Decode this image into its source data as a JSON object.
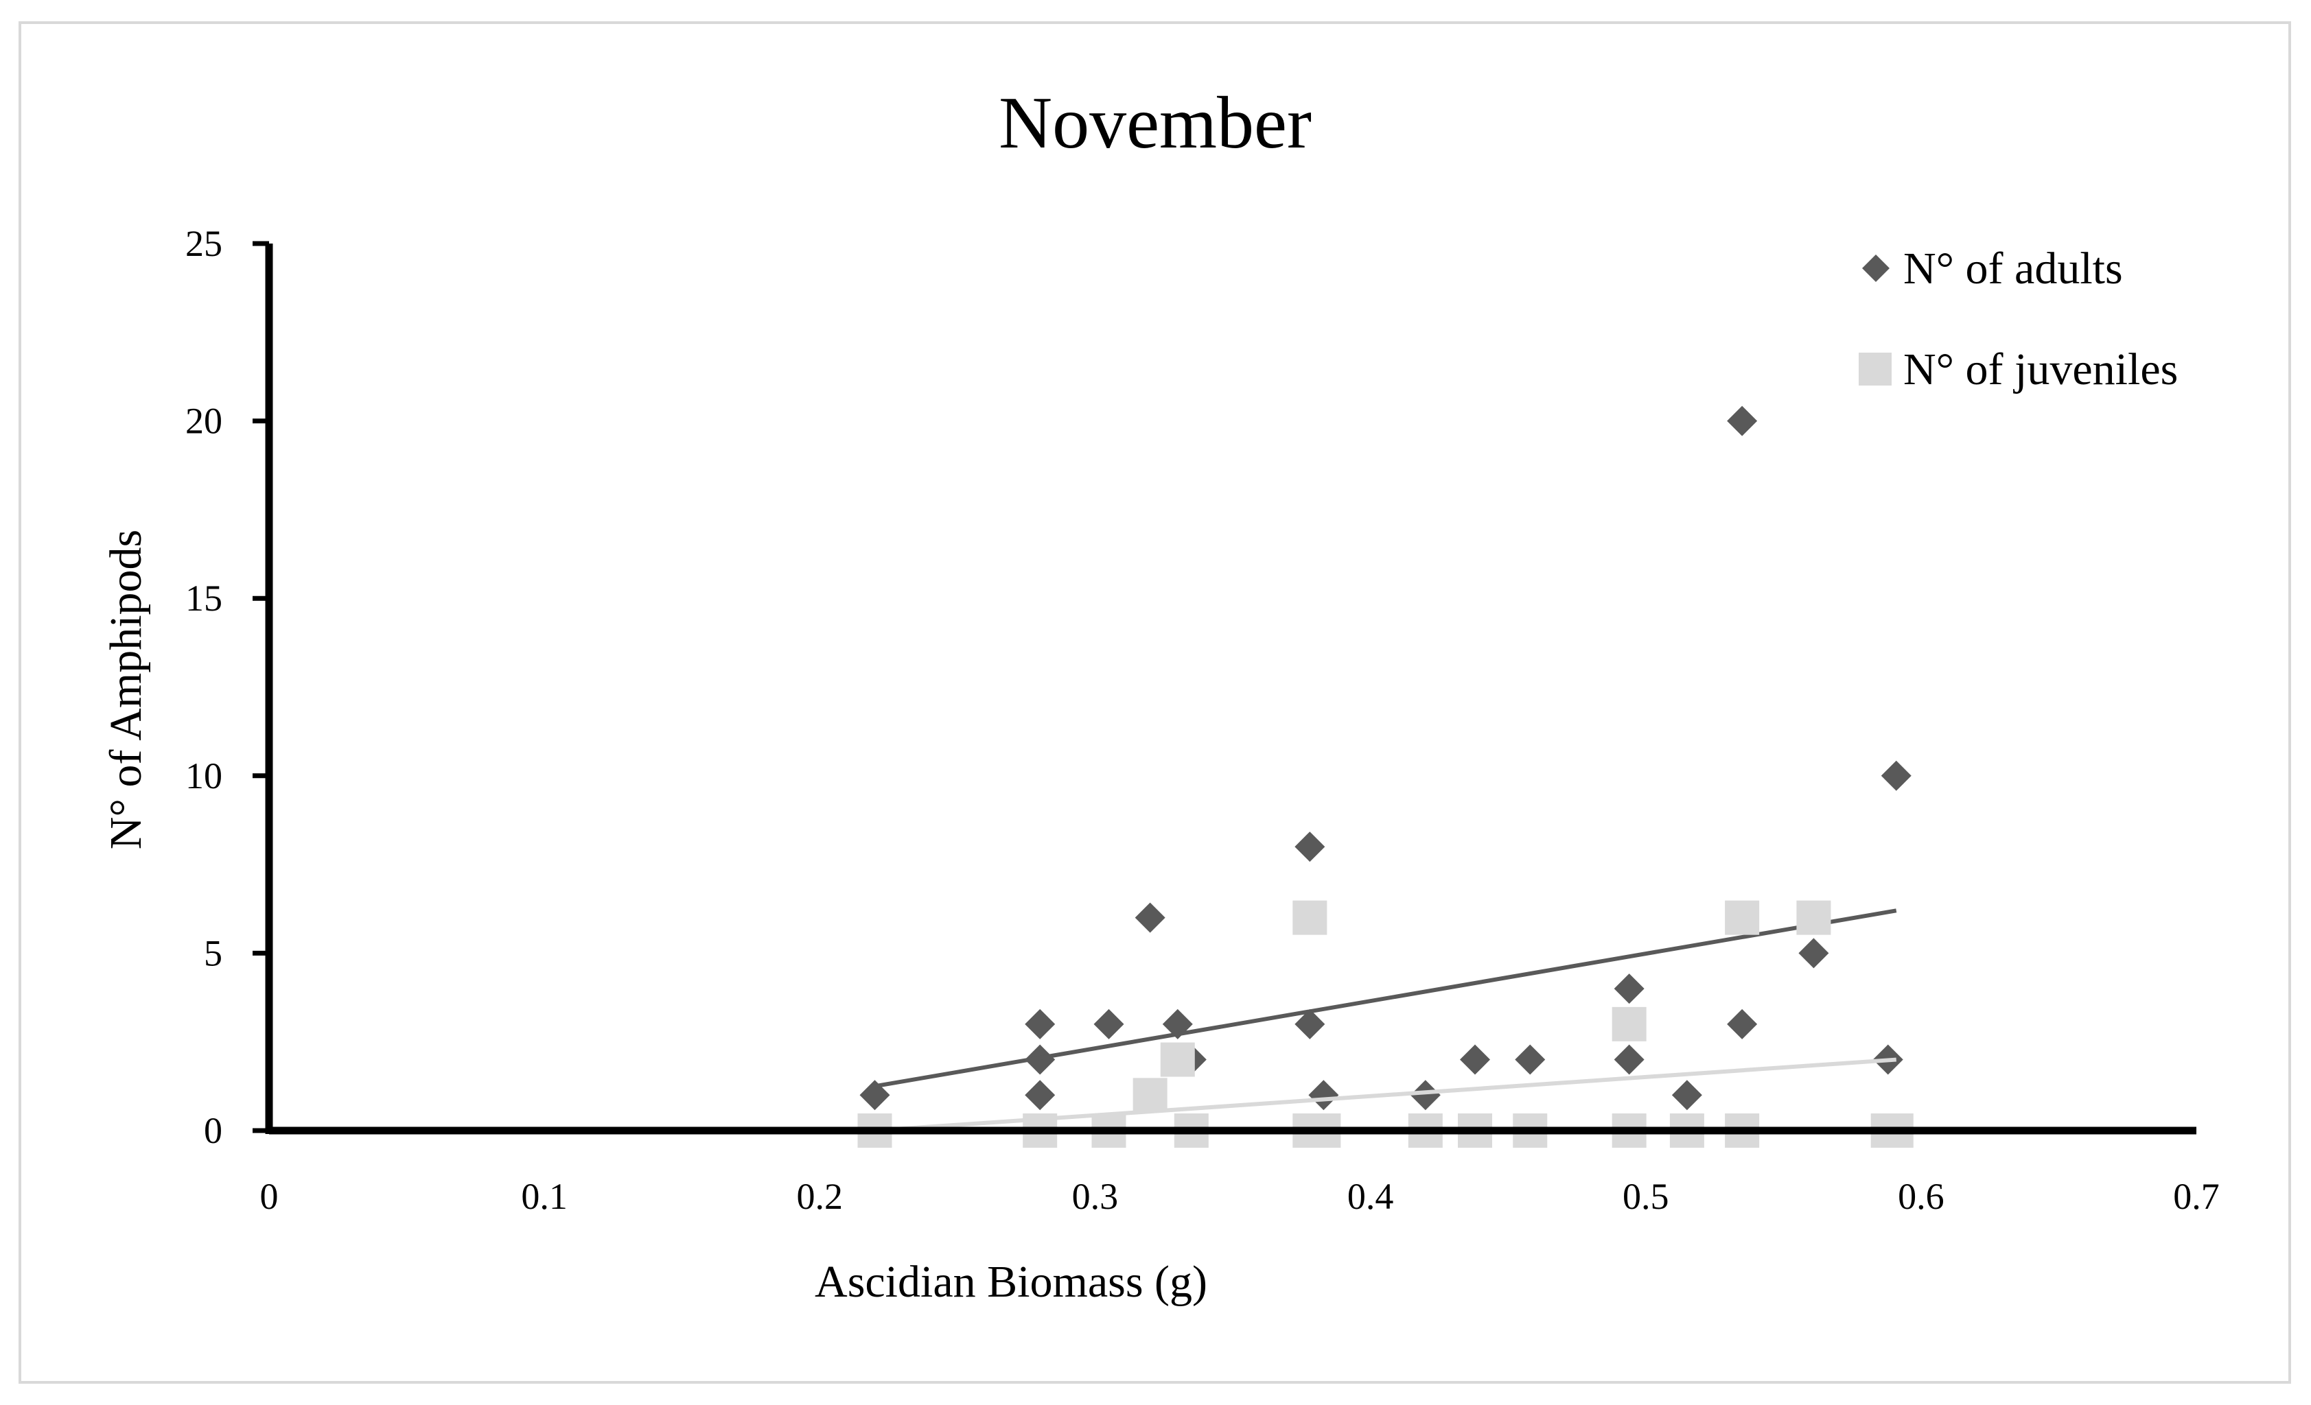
{
  "chart_data": {
    "type": "scatter",
    "title": "November",
    "xlabel": "Ascidian Biomass (g)",
    "ylabel": "N° of Amphipods",
    "xlim": [
      0,
      0.7
    ],
    "ylim": [
      0,
      25
    ],
    "x_ticks": [
      "0",
      "0.1",
      "0.2",
      "0.3",
      "0.4",
      "0.5",
      "0.6",
      "0.7"
    ],
    "y_ticks": [
      "0",
      "5",
      "10",
      "15",
      "20",
      "25"
    ],
    "grid": false,
    "legend_position": "top-right",
    "series": [
      {
        "name": "N° of adults",
        "marker": "diamond",
        "color": "#595959",
        "points": [
          [
            0.22,
            1
          ],
          [
            0.28,
            3
          ],
          [
            0.28,
            2
          ],
          [
            0.28,
            1
          ],
          [
            0.305,
            3
          ],
          [
            0.32,
            6
          ],
          [
            0.33,
            3
          ],
          [
            0.335,
            2
          ],
          [
            0.378,
            8
          ],
          [
            0.378,
            3
          ],
          [
            0.383,
            1
          ],
          [
            0.42,
            1
          ],
          [
            0.438,
            2
          ],
          [
            0.458,
            2
          ],
          [
            0.494,
            4
          ],
          [
            0.494,
            2
          ],
          [
            0.515,
            1
          ],
          [
            0.535,
            20
          ],
          [
            0.535,
            3
          ],
          [
            0.561,
            5
          ],
          [
            0.588,
            2
          ],
          [
            0.591,
            10
          ]
        ],
        "trendline": {
          "x": [
            0.22,
            0.591
          ],
          "y": [
            1.25,
            6.2
          ],
          "color": "#595959"
        }
      },
      {
        "name": "N° of juveniles",
        "marker": "square",
        "color": "#d9d9d9",
        "points": [
          [
            0.22,
            0
          ],
          [
            0.28,
            0
          ],
          [
            0.305,
            0
          ],
          [
            0.32,
            1
          ],
          [
            0.33,
            2
          ],
          [
            0.335,
            0
          ],
          [
            0.378,
            6
          ],
          [
            0.378,
            0
          ],
          [
            0.383,
            0
          ],
          [
            0.42,
            0
          ],
          [
            0.438,
            0
          ],
          [
            0.458,
            0
          ],
          [
            0.494,
            3
          ],
          [
            0.494,
            0
          ],
          [
            0.515,
            0
          ],
          [
            0.535,
            6
          ],
          [
            0.535,
            0
          ],
          [
            0.561,
            6
          ],
          [
            0.588,
            0
          ],
          [
            0.591,
            0
          ]
        ],
        "trendline": {
          "x": [
            0.22,
            0.591
          ],
          "y": [
            0.0,
            2.0
          ],
          "color": "#d9d9d9"
        }
      }
    ]
  }
}
